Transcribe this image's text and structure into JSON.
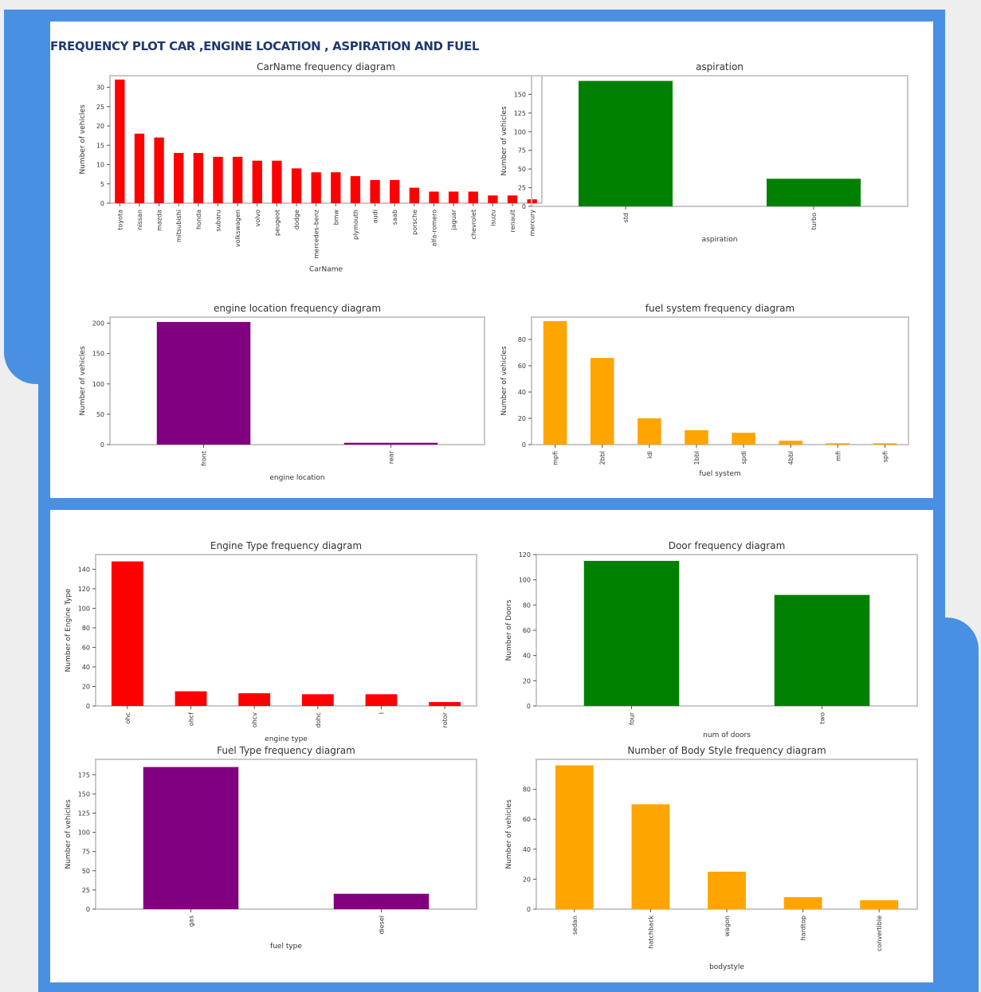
{
  "page": {
    "title": "FREQUENCY PLOT CAR ,ENGINE LOCATION , ASPIRATION AND FUEL"
  },
  "chart_data": [
    {
      "id": "carname",
      "type": "bar",
      "title": "CarName frequency diagram",
      "xlabel": "CarName",
      "ylabel": "Number of vehicles",
      "color": "#ff0000",
      "ylim": [
        0,
        33
      ],
      "yticks": [
        0,
        5,
        10,
        15,
        20,
        25,
        30
      ],
      "categories": [
        "toyota",
        "nissan",
        "mazda",
        "mitsubishi",
        "honda",
        "subaru",
        "volkswagen",
        "volvo",
        "peugeot",
        "dodge",
        "mercedes-benz",
        "bmw",
        "plymouth",
        "audi",
        "saab",
        "porsche",
        "alfa-romero",
        "jaguar",
        "chevrolet",
        "isuzu",
        "renault",
        "mercury"
      ],
      "values": [
        32,
        18,
        17,
        13,
        13,
        12,
        12,
        11,
        11,
        9,
        8,
        8,
        7,
        6,
        6,
        4,
        3,
        3,
        3,
        2,
        2,
        1
      ]
    },
    {
      "id": "aspiration",
      "type": "bar",
      "title": "aspiration",
      "xlabel": "aspiration",
      "ylabel": "Number of vehicles",
      "color": "#008000",
      "ylim": [
        0,
        175
      ],
      "yticks": [
        0,
        25,
        50,
        75,
        100,
        125,
        150
      ],
      "categories": [
        "std",
        "turbo"
      ],
      "values": [
        168,
        37
      ]
    },
    {
      "id": "enginelocation",
      "type": "bar",
      "title": "engine location frequency diagram",
      "xlabel": "engine location",
      "ylabel": "Number of vehicles",
      "color": "#800080",
      "ylim": [
        0,
        210
      ],
      "yticks": [
        0,
        50,
        100,
        150,
        200
      ],
      "categories": [
        "front",
        "rear"
      ],
      "values": [
        202,
        3
      ]
    },
    {
      "id": "fuelsystem",
      "type": "bar",
      "title": "fuel system frequency diagram",
      "xlabel": "fuel system",
      "ylabel": "Number of vehicles",
      "color": "#ffa500",
      "ylim": [
        0,
        97
      ],
      "yticks": [
        0,
        20,
        40,
        60,
        80
      ],
      "categories": [
        "mpfi",
        "2bbl",
        "idi",
        "1bbl",
        "spdi",
        "4bbl",
        "mfi",
        "spfi"
      ],
      "values": [
        94,
        66,
        20,
        11,
        9,
        3,
        1,
        1
      ]
    },
    {
      "id": "enginetype",
      "type": "bar",
      "title": "Engine Type frequency diagram",
      "xlabel": "engine type",
      "ylabel": "Number of Engine Type",
      "color": "#ff0000",
      "ylim": [
        0,
        155
      ],
      "yticks": [
        0,
        20,
        40,
        60,
        80,
        100,
        120,
        140
      ],
      "categories": [
        "ohc",
        "ohcf",
        "ohcv",
        "dohc",
        "l",
        "rotor"
      ],
      "values": [
        148,
        15,
        13,
        12,
        12,
        4
      ]
    },
    {
      "id": "doors",
      "type": "bar",
      "title": "Door frequency diagram",
      "xlabel": "num of doors",
      "ylabel": "Number of Doors",
      "color": "#008000",
      "ylim": [
        0,
        120
      ],
      "yticks": [
        0,
        20,
        40,
        60,
        80,
        100,
        120
      ],
      "categories": [
        "four",
        "two"
      ],
      "values": [
        115,
        88
      ]
    },
    {
      "id": "fueltype",
      "type": "bar",
      "title": "Fuel Type frequency diagram",
      "xlabel": "fuel type",
      "ylabel": "Number of vehicles",
      "color": "#800080",
      "ylim": [
        0,
        195
      ],
      "yticks": [
        0,
        25,
        50,
        75,
        100,
        125,
        150,
        175
      ],
      "categories": [
        "gas",
        "diesel"
      ],
      "values": [
        185,
        20
      ]
    },
    {
      "id": "bodystyle",
      "type": "bar",
      "title": "Number of Body Style frequency diagram",
      "xlabel": "bodystyle",
      "ylabel": "Number of vehicles",
      "color": "#ffa500",
      "ylim": [
        0,
        100
      ],
      "yticks": [
        0,
        20,
        40,
        60,
        80
      ],
      "categories": [
        "sedan",
        "hatchback",
        "wagon",
        "hardtop",
        "convertible"
      ],
      "values": [
        96,
        70,
        25,
        8,
        6
      ]
    }
  ]
}
